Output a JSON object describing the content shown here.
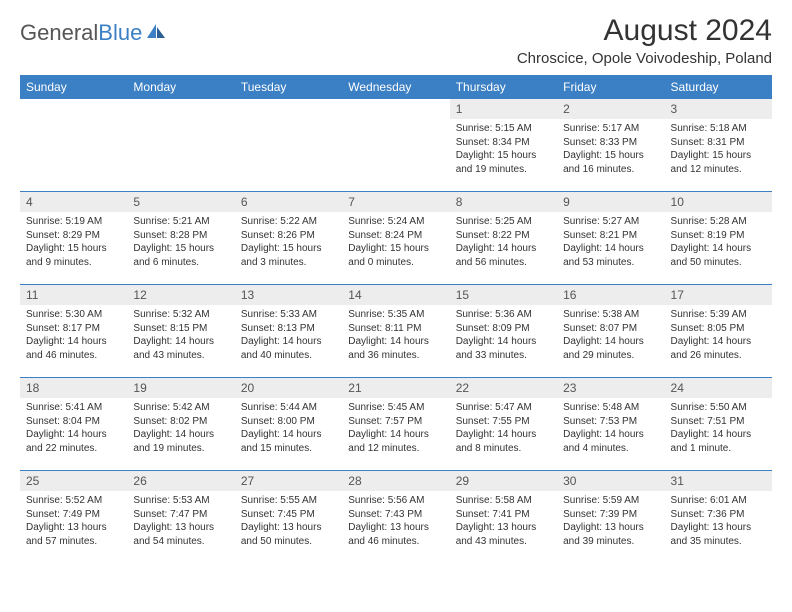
{
  "logo": {
    "text_gray": "General",
    "text_blue": "Blue"
  },
  "title": "August 2024",
  "location": "Chroscice, Opole Voivodeship, Poland",
  "colors": {
    "header_bg": "#3b7fc4",
    "day_num_bg": "#ededed",
    "text": "#333333",
    "logo_gray": "#565656",
    "logo_blue": "#3b7fc4"
  },
  "day_names": [
    "Sunday",
    "Monday",
    "Tuesday",
    "Wednesday",
    "Thursday",
    "Friday",
    "Saturday"
  ],
  "weeks": [
    [
      {
        "n": "",
        "sunrise": "",
        "sunset": "",
        "daylight": ""
      },
      {
        "n": "",
        "sunrise": "",
        "sunset": "",
        "daylight": ""
      },
      {
        "n": "",
        "sunrise": "",
        "sunset": "",
        "daylight": ""
      },
      {
        "n": "",
        "sunrise": "",
        "sunset": "",
        "daylight": ""
      },
      {
        "n": "1",
        "sunrise": "Sunrise: 5:15 AM",
        "sunset": "Sunset: 8:34 PM",
        "daylight": "Daylight: 15 hours and 19 minutes."
      },
      {
        "n": "2",
        "sunrise": "Sunrise: 5:17 AM",
        "sunset": "Sunset: 8:33 PM",
        "daylight": "Daylight: 15 hours and 16 minutes."
      },
      {
        "n": "3",
        "sunrise": "Sunrise: 5:18 AM",
        "sunset": "Sunset: 8:31 PM",
        "daylight": "Daylight: 15 hours and 12 minutes."
      }
    ],
    [
      {
        "n": "4",
        "sunrise": "Sunrise: 5:19 AM",
        "sunset": "Sunset: 8:29 PM",
        "daylight": "Daylight: 15 hours and 9 minutes."
      },
      {
        "n": "5",
        "sunrise": "Sunrise: 5:21 AM",
        "sunset": "Sunset: 8:28 PM",
        "daylight": "Daylight: 15 hours and 6 minutes."
      },
      {
        "n": "6",
        "sunrise": "Sunrise: 5:22 AM",
        "sunset": "Sunset: 8:26 PM",
        "daylight": "Daylight: 15 hours and 3 minutes."
      },
      {
        "n": "7",
        "sunrise": "Sunrise: 5:24 AM",
        "sunset": "Sunset: 8:24 PM",
        "daylight": "Daylight: 15 hours and 0 minutes."
      },
      {
        "n": "8",
        "sunrise": "Sunrise: 5:25 AM",
        "sunset": "Sunset: 8:22 PM",
        "daylight": "Daylight: 14 hours and 56 minutes."
      },
      {
        "n": "9",
        "sunrise": "Sunrise: 5:27 AM",
        "sunset": "Sunset: 8:21 PM",
        "daylight": "Daylight: 14 hours and 53 minutes."
      },
      {
        "n": "10",
        "sunrise": "Sunrise: 5:28 AM",
        "sunset": "Sunset: 8:19 PM",
        "daylight": "Daylight: 14 hours and 50 minutes."
      }
    ],
    [
      {
        "n": "11",
        "sunrise": "Sunrise: 5:30 AM",
        "sunset": "Sunset: 8:17 PM",
        "daylight": "Daylight: 14 hours and 46 minutes."
      },
      {
        "n": "12",
        "sunrise": "Sunrise: 5:32 AM",
        "sunset": "Sunset: 8:15 PM",
        "daylight": "Daylight: 14 hours and 43 minutes."
      },
      {
        "n": "13",
        "sunrise": "Sunrise: 5:33 AM",
        "sunset": "Sunset: 8:13 PM",
        "daylight": "Daylight: 14 hours and 40 minutes."
      },
      {
        "n": "14",
        "sunrise": "Sunrise: 5:35 AM",
        "sunset": "Sunset: 8:11 PM",
        "daylight": "Daylight: 14 hours and 36 minutes."
      },
      {
        "n": "15",
        "sunrise": "Sunrise: 5:36 AM",
        "sunset": "Sunset: 8:09 PM",
        "daylight": "Daylight: 14 hours and 33 minutes."
      },
      {
        "n": "16",
        "sunrise": "Sunrise: 5:38 AM",
        "sunset": "Sunset: 8:07 PM",
        "daylight": "Daylight: 14 hours and 29 minutes."
      },
      {
        "n": "17",
        "sunrise": "Sunrise: 5:39 AM",
        "sunset": "Sunset: 8:05 PM",
        "daylight": "Daylight: 14 hours and 26 minutes."
      }
    ],
    [
      {
        "n": "18",
        "sunrise": "Sunrise: 5:41 AM",
        "sunset": "Sunset: 8:04 PM",
        "daylight": "Daylight: 14 hours and 22 minutes."
      },
      {
        "n": "19",
        "sunrise": "Sunrise: 5:42 AM",
        "sunset": "Sunset: 8:02 PM",
        "daylight": "Daylight: 14 hours and 19 minutes."
      },
      {
        "n": "20",
        "sunrise": "Sunrise: 5:44 AM",
        "sunset": "Sunset: 8:00 PM",
        "daylight": "Daylight: 14 hours and 15 minutes."
      },
      {
        "n": "21",
        "sunrise": "Sunrise: 5:45 AM",
        "sunset": "Sunset: 7:57 PM",
        "daylight": "Daylight: 14 hours and 12 minutes."
      },
      {
        "n": "22",
        "sunrise": "Sunrise: 5:47 AM",
        "sunset": "Sunset: 7:55 PM",
        "daylight": "Daylight: 14 hours and 8 minutes."
      },
      {
        "n": "23",
        "sunrise": "Sunrise: 5:48 AM",
        "sunset": "Sunset: 7:53 PM",
        "daylight": "Daylight: 14 hours and 4 minutes."
      },
      {
        "n": "24",
        "sunrise": "Sunrise: 5:50 AM",
        "sunset": "Sunset: 7:51 PM",
        "daylight": "Daylight: 14 hours and 1 minute."
      }
    ],
    [
      {
        "n": "25",
        "sunrise": "Sunrise: 5:52 AM",
        "sunset": "Sunset: 7:49 PM",
        "daylight": "Daylight: 13 hours and 57 minutes."
      },
      {
        "n": "26",
        "sunrise": "Sunrise: 5:53 AM",
        "sunset": "Sunset: 7:47 PM",
        "daylight": "Daylight: 13 hours and 54 minutes."
      },
      {
        "n": "27",
        "sunrise": "Sunrise: 5:55 AM",
        "sunset": "Sunset: 7:45 PM",
        "daylight": "Daylight: 13 hours and 50 minutes."
      },
      {
        "n": "28",
        "sunrise": "Sunrise: 5:56 AM",
        "sunset": "Sunset: 7:43 PM",
        "daylight": "Daylight: 13 hours and 46 minutes."
      },
      {
        "n": "29",
        "sunrise": "Sunrise: 5:58 AM",
        "sunset": "Sunset: 7:41 PM",
        "daylight": "Daylight: 13 hours and 43 minutes."
      },
      {
        "n": "30",
        "sunrise": "Sunrise: 5:59 AM",
        "sunset": "Sunset: 7:39 PM",
        "daylight": "Daylight: 13 hours and 39 minutes."
      },
      {
        "n": "31",
        "sunrise": "Sunrise: 6:01 AM",
        "sunset": "Sunset: 7:36 PM",
        "daylight": "Daylight: 13 hours and 35 minutes."
      }
    ]
  ]
}
